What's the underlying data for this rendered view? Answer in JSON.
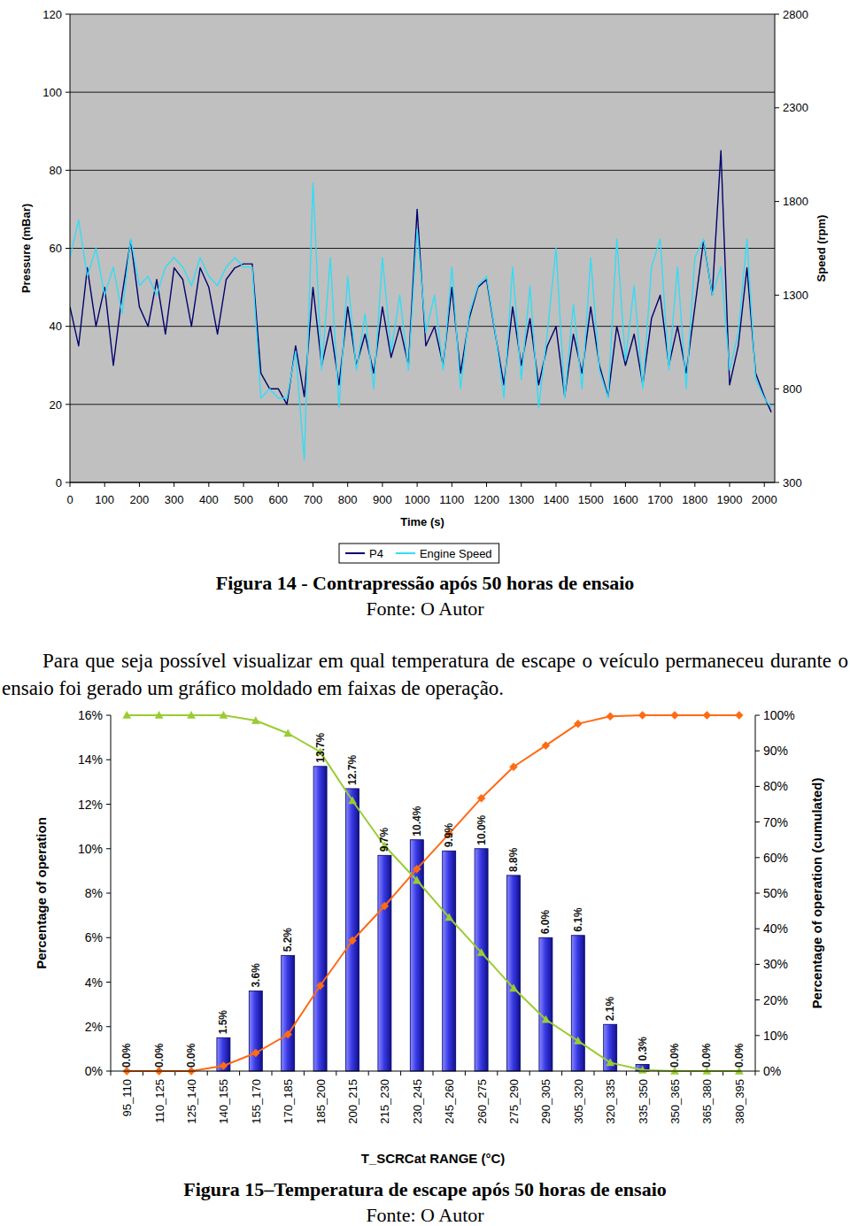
{
  "chart_data": [
    {
      "type": "line",
      "x_label": "Time (s)",
      "y_label": "Pressure (mBar)",
      "y2_label": "Speed (rpm)",
      "x": [
        0,
        25,
        50,
        75,
        100,
        125,
        150,
        175,
        200,
        225,
        250,
        275,
        300,
        325,
        350,
        375,
        400,
        425,
        450,
        475,
        500,
        525,
        550,
        575,
        600,
        625,
        650,
        675,
        700,
        725,
        750,
        775,
        800,
        825,
        850,
        875,
        900,
        925,
        950,
        975,
        1000,
        1025,
        1050,
        1075,
        1100,
        1125,
        1150,
        1175,
        1200,
        1225,
        1250,
        1275,
        1300,
        1325,
        1350,
        1375,
        1400,
        1425,
        1450,
        1475,
        1500,
        1525,
        1550,
        1575,
        1600,
        1625,
        1650,
        1675,
        1700,
        1725,
        1750,
        1775,
        1800,
        1825,
        1850,
        1875,
        1900,
        1925,
        1950,
        1975,
        2000,
        2020
      ],
      "xlim": [
        0,
        2030
      ],
      "xticks": [
        0,
        100,
        200,
        300,
        400,
        500,
        600,
        700,
        800,
        900,
        1000,
        1100,
        1200,
        1300,
        1400,
        1500,
        1600,
        1700,
        1800,
        1900,
        2000
      ],
      "ylim": [
        0,
        120
      ],
      "yticks": [
        0,
        20,
        40,
        60,
        80,
        100,
        120
      ],
      "y2lim": [
        300,
        2800
      ],
      "y2ticks": [
        300,
        800,
        1300,
        1800,
        2300,
        2800
      ],
      "grid": true,
      "legend": "bottom",
      "series": [
        {
          "name": "P4",
          "color": "#00006e",
          "values": [
            45,
            35,
            55,
            40,
            50,
            30,
            48,
            62,
            45,
            40,
            52,
            38,
            55,
            52,
            40,
            55,
            50,
            38,
            52,
            55,
            56,
            56,
            28,
            24,
            24,
            20,
            35,
            22,
            50,
            30,
            40,
            25,
            45,
            30,
            38,
            28,
            45,
            32,
            40,
            30,
            70,
            35,
            40,
            30,
            50,
            28,
            42,
            50,
            52,
            38,
            25,
            45,
            30,
            42,
            25,
            35,
            40,
            22,
            38,
            28,
            45,
            30,
            22,
            40,
            30,
            38,
            25,
            42,
            48,
            30,
            40,
            28,
            45,
            62,
            48,
            85,
            25,
            35,
            55,
            28,
            22,
            18
          ]
        },
        {
          "name": "Engine Speed",
          "color": "#33dcf5",
          "axis": "y2",
          "values": [
            1500,
            1700,
            1400,
            1550,
            1300,
            1450,
            1200,
            1600,
            1350,
            1400,
            1300,
            1450,
            1500,
            1450,
            1350,
            1500,
            1400,
            1350,
            1450,
            1500,
            1450,
            1450,
            750,
            800,
            750,
            750,
            1000,
            420,
            1900,
            900,
            1500,
            700,
            1400,
            900,
            1200,
            800,
            1500,
            1000,
            1300,
            900,
            1650,
            1100,
            1300,
            900,
            1450,
            800,
            1200,
            1350,
            1400,
            1100,
            750,
            1450,
            850,
            1350,
            700,
            1100,
            1550,
            750,
            1250,
            800,
            1500,
            900,
            750,
            1600,
            950,
            1350,
            800,
            1450,
            1600,
            900,
            1450,
            800,
            1500,
            1600,
            1300,
            1450,
            900,
            1100,
            1600,
            850,
            750,
            700
          ]
        }
      ]
    },
    {
      "type": "bar",
      "x_label": "T_SCRCat RANGE (°C)",
      "y_label": "Percentage of operation",
      "y2_label": "Percentage of operation (cumulated)",
      "categories": [
        "95_110",
        "110_125",
        "125_140",
        "140_155",
        "155_170",
        "170_185",
        "185_200",
        "200_215",
        "215_230",
        "230_245",
        "245_260",
        "260_275",
        "275_290",
        "290_305",
        "305_320",
        "320_335",
        "335_350",
        "350_365",
        "365_380",
        "380_395"
      ],
      "ylim": [
        0,
        16
      ],
      "yticks": [
        {
          "value": 0,
          "label": "0%"
        },
        {
          "value": 2,
          "label": "2%"
        },
        {
          "value": 4,
          "label": "4%"
        },
        {
          "value": 6,
          "label": "6%"
        },
        {
          "value": 8,
          "label": "8%"
        },
        {
          "value": 10,
          "label": "10%"
        },
        {
          "value": 12,
          "label": "12%"
        },
        {
          "value": 14,
          "label": "14%"
        },
        {
          "value": 16,
          "label": "16%"
        }
      ],
      "y2lim": [
        0,
        100
      ],
      "y2ticks": [
        {
          "value": 0,
          "label": "0%"
        },
        {
          "value": 10,
          "label": "10%"
        },
        {
          "value": 20,
          "label": "20%"
        },
        {
          "value": 30,
          "label": "30%"
        },
        {
          "value": 40,
          "label": "40%"
        },
        {
          "value": 50,
          "label": "50%"
        },
        {
          "value": 60,
          "label": "60%"
        },
        {
          "value": 70,
          "label": "70%"
        },
        {
          "value": 80,
          "label": "80%"
        },
        {
          "value": 90,
          "label": "90%"
        },
        {
          "value": 100,
          "label": "100%"
        }
      ],
      "grid": false,
      "data_labels": true,
      "series": [
        {
          "type": "bar",
          "color": "#2a2ad0",
          "values": [
            0,
            0,
            0,
            1.5,
            3.6,
            5.2,
            13.7,
            12.7,
            9.7,
            10.4,
            9.9,
            10.0,
            8.8,
            6.0,
            6.1,
            2.1,
            0.3,
            0,
            0,
            0
          ],
          "value_labels": [
            "0.0%",
            "0.0%",
            "0.0%",
            "1.5%",
            "3.6%",
            "5.2%",
            "13.7%",
            "12.7%",
            "9.7%",
            "10.4%",
            "9.9%",
            "10.0%",
            "8.8%",
            "6.0%",
            "6.1%",
            "2.1%",
            "0.3%",
            "0.0%",
            "0.0%",
            "0.0%"
          ]
        },
        {
          "type": "line",
          "color": "#99cc33",
          "marker": "triangle",
          "axis": "y2",
          "values": [
            100,
            100,
            100,
            100,
            98.5,
            94.9,
            89.7,
            76,
            63.3,
            53.6,
            43.2,
            33.3,
            23.3,
            14.5,
            8.5,
            2.4,
            0.3,
            0,
            0,
            0
          ]
        },
        {
          "type": "line",
          "color": "#ff6a13",
          "marker": "diamond",
          "axis": "y2",
          "values": [
            0,
            0,
            0,
            1.5,
            5.1,
            10.3,
            24,
            36.7,
            46.4,
            56.8,
            66.7,
            76.7,
            85.5,
            91.5,
            97.6,
            99.7,
            100,
            100,
            100,
            100
          ]
        }
      ]
    }
  ],
  "document": {
    "figure_captions": [
      "Figura 14 - Contrapressão após 50 horas de ensaio",
      "Figura 15–Temperatura de escape após 50 horas de ensaio"
    ],
    "figure_sources": [
      "Fonte: O Autor",
      "Fonte: O Autor"
    ],
    "paragraph": "Para que seja possível visualizar em qual temperatura de escape o veículo permaneceu durante o ensaio foi gerado um gráfico moldado em faixas de operação."
  }
}
